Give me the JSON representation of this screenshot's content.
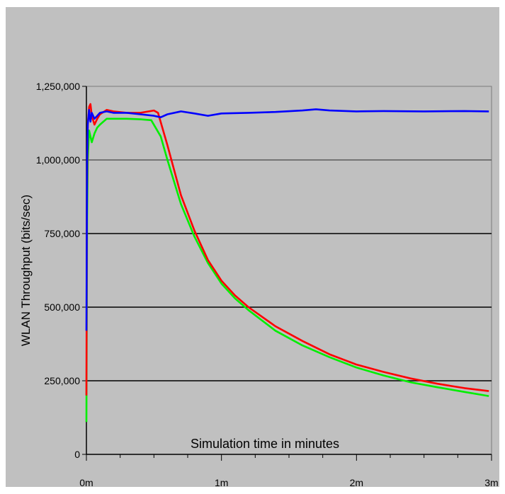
{
  "chart_data": {
    "type": "line",
    "title": "",
    "xlabel": "Simulation time in minutes",
    "ylabel": "WLAN Throughput (bits/sec)",
    "xlim": [
      0,
      3
    ],
    "ylim": [
      0,
      1250000
    ],
    "xticks": [
      {
        "value": 0,
        "label": "0m"
      },
      {
        "value": 1,
        "label": "1m"
      },
      {
        "value": 2,
        "label": "2m"
      },
      {
        "value": 3,
        "label": "3m"
      }
    ],
    "yticks": [
      {
        "value": 0,
        "label": "0"
      },
      {
        "value": 250000,
        "label": "250,000"
      },
      {
        "value": 500000,
        "label": "500,000"
      },
      {
        "value": 750000,
        "label": "750,000"
      },
      {
        "value": 1000000,
        "label": "1,000,000"
      },
      {
        "value": 1250000,
        "label": "1,250,000"
      }
    ],
    "grid": "horizontal",
    "background": "#c0c0c0",
    "series": [
      {
        "color": "#0000ff",
        "points": [
          [
            0,
            420000
          ],
          [
            0.005,
            1000000
          ],
          [
            0.01,
            1120000
          ],
          [
            0.02,
            1170000
          ],
          [
            0.03,
            1130000
          ],
          [
            0.04,
            1160000
          ],
          [
            0.06,
            1140000
          ],
          [
            0.08,
            1150000
          ],
          [
            0.1,
            1160000
          ],
          [
            0.15,
            1165000
          ],
          [
            0.2,
            1160000
          ],
          [
            0.3,
            1160000
          ],
          [
            0.4,
            1155000
          ],
          [
            0.5,
            1150000
          ],
          [
            0.55,
            1145000
          ],
          [
            0.6,
            1155000
          ],
          [
            0.7,
            1165000
          ],
          [
            0.8,
            1158000
          ],
          [
            0.9,
            1150000
          ],
          [
            1.0,
            1158000
          ],
          [
            1.2,
            1160000
          ],
          [
            1.4,
            1163000
          ],
          [
            1.6,
            1168000
          ],
          [
            1.7,
            1172000
          ],
          [
            1.8,
            1168000
          ],
          [
            2.0,
            1165000
          ],
          [
            2.2,
            1166000
          ],
          [
            2.5,
            1165000
          ],
          [
            2.8,
            1166000
          ],
          [
            2.98,
            1165000
          ]
        ]
      },
      {
        "color": "#ff0000",
        "points": [
          [
            0,
            200000
          ],
          [
            0.004,
            900000
          ],
          [
            0.01,
            1120000
          ],
          [
            0.02,
            1180000
          ],
          [
            0.03,
            1190000
          ],
          [
            0.04,
            1150000
          ],
          [
            0.06,
            1120000
          ],
          [
            0.08,
            1140000
          ],
          [
            0.1,
            1155000
          ],
          [
            0.15,
            1170000
          ],
          [
            0.2,
            1165000
          ],
          [
            0.3,
            1160000
          ],
          [
            0.4,
            1160000
          ],
          [
            0.5,
            1168000
          ],
          [
            0.53,
            1160000
          ],
          [
            0.6,
            1050000
          ],
          [
            0.7,
            880000
          ],
          [
            0.8,
            760000
          ],
          [
            0.9,
            660000
          ],
          [
            1.0,
            590000
          ],
          [
            1.1,
            540000
          ],
          [
            1.2,
            500000
          ],
          [
            1.4,
            435000
          ],
          [
            1.6,
            385000
          ],
          [
            1.8,
            340000
          ],
          [
            2.0,
            305000
          ],
          [
            2.2,
            280000
          ],
          [
            2.4,
            258000
          ],
          [
            2.6,
            240000
          ],
          [
            2.8,
            225000
          ],
          [
            2.98,
            215000
          ]
        ]
      },
      {
        "color": "#00ee00",
        "points": [
          [
            0,
            110000
          ],
          [
            0.005,
            800000
          ],
          [
            0.01,
            1000000
          ],
          [
            0.02,
            1100000
          ],
          [
            0.04,
            1060000
          ],
          [
            0.06,
            1090000
          ],
          [
            0.08,
            1110000
          ],
          [
            0.1,
            1120000
          ],
          [
            0.15,
            1140000
          ],
          [
            0.2,
            1140000
          ],
          [
            0.3,
            1140000
          ],
          [
            0.4,
            1138000
          ],
          [
            0.48,
            1135000
          ],
          [
            0.55,
            1080000
          ],
          [
            0.6,
            1000000
          ],
          [
            0.7,
            850000
          ],
          [
            0.8,
            740000
          ],
          [
            0.9,
            650000
          ],
          [
            1.0,
            580000
          ],
          [
            1.1,
            530000
          ],
          [
            1.2,
            490000
          ],
          [
            1.4,
            420000
          ],
          [
            1.6,
            370000
          ],
          [
            1.8,
            330000
          ],
          [
            2.0,
            295000
          ],
          [
            2.2,
            268000
          ],
          [
            2.4,
            245000
          ],
          [
            2.6,
            228000
          ],
          [
            2.8,
            212000
          ],
          [
            2.98,
            198000
          ]
        ]
      }
    ]
  }
}
